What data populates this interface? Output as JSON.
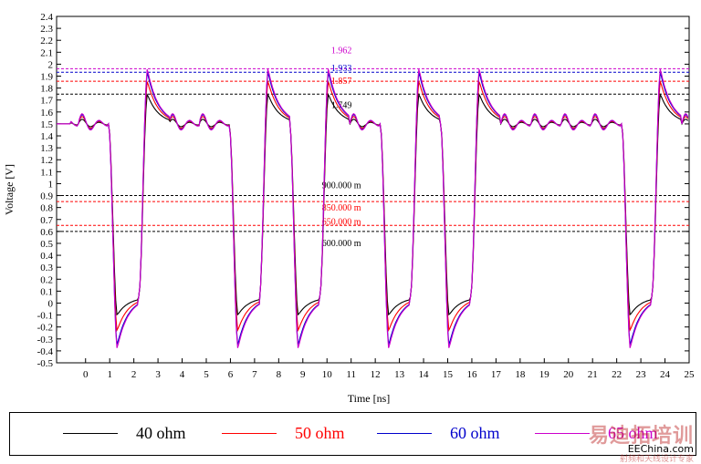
{
  "chart_data": {
    "type": "line",
    "xlabel": "Time [ns]",
    "ylabel": "Voltage [V]",
    "xlim": [
      -1.2,
      25
    ],
    "ylim": [
      -0.5,
      2.4
    ],
    "x_ticks": [
      0,
      1,
      2,
      3,
      4,
      5,
      6,
      7,
      8,
      9,
      10,
      11,
      12,
      13,
      14,
      15,
      16,
      17,
      18,
      19,
      20,
      21,
      22,
      23,
      24,
      25
    ],
    "y_ticks": [
      -0.5,
      -0.4,
      -0.3,
      -0.2,
      -0.1,
      0,
      0.1,
      0.2,
      0.3,
      0.4,
      0.5,
      0.6,
      0.7,
      0.8,
      0.9,
      1,
      1.1,
      1.2,
      1.3,
      1.4,
      1.5,
      1.6,
      1.7,
      1.8,
      1.9,
      2,
      2.1,
      2.2,
      2.3,
      2.4
    ],
    "bits": [
      1,
      0,
      1,
      1,
      1,
      0,
      1,
      0,
      1,
      1,
      0,
      1,
      0,
      1,
      1,
      1,
      1,
      1,
      0,
      1
    ],
    "series": [
      {
        "name": "40 ohm",
        "color": "#000000",
        "high": 1.749,
        "low": -0.1,
        "ring": 0.05
      },
      {
        "name": "50 ohm",
        "color": "#ff0000",
        "high": 1.857,
        "low": -0.23,
        "ring": 0.08
      },
      {
        "name": "60 ohm",
        "color": "#0000cc",
        "high": 1.933,
        "low": -0.35,
        "ring": 0.1
      },
      {
        "name": "65 ohm",
        "color": "#cc00cc",
        "high": 1.962,
        "low": -0.38,
        "ring": 0.11
      }
    ],
    "reference_lines": [
      {
        "y": 1.962,
        "label": "1.962",
        "color": "#cc00cc"
      },
      {
        "y": 1.933,
        "label": "1.933",
        "color": "#0000cc"
      },
      {
        "y": 1.857,
        "label": "1.857",
        "color": "#ff0000"
      },
      {
        "y": 1.749,
        "label": "1.749",
        "color": "#000000"
      },
      {
        "y": 0.9,
        "label": "900.000 m",
        "color": "#000000"
      },
      {
        "y": 0.85,
        "label": "850.000 m",
        "color": "#ff0000"
      },
      {
        "y": 0.65,
        "label": "650.000 m",
        "color": "#ff0000"
      },
      {
        "y": 0.6,
        "label": "600.000 m",
        "color": "#000000"
      }
    ],
    "grid": false,
    "legend_position": "bottom"
  },
  "legend": {
    "items": [
      {
        "label": "40 ohm",
        "color": "#000000"
      },
      {
        "label": "50 ohm",
        "color": "#ff0000"
      },
      {
        "label": "60 ohm",
        "color": "#0000cc"
      },
      {
        "label": "65 ohm",
        "color": "#cc00cc"
      }
    ]
  },
  "watermark": {
    "text": "易迪拓培训",
    "site": "EEChina.com",
    "sub": "射频和天线设计专家"
  }
}
